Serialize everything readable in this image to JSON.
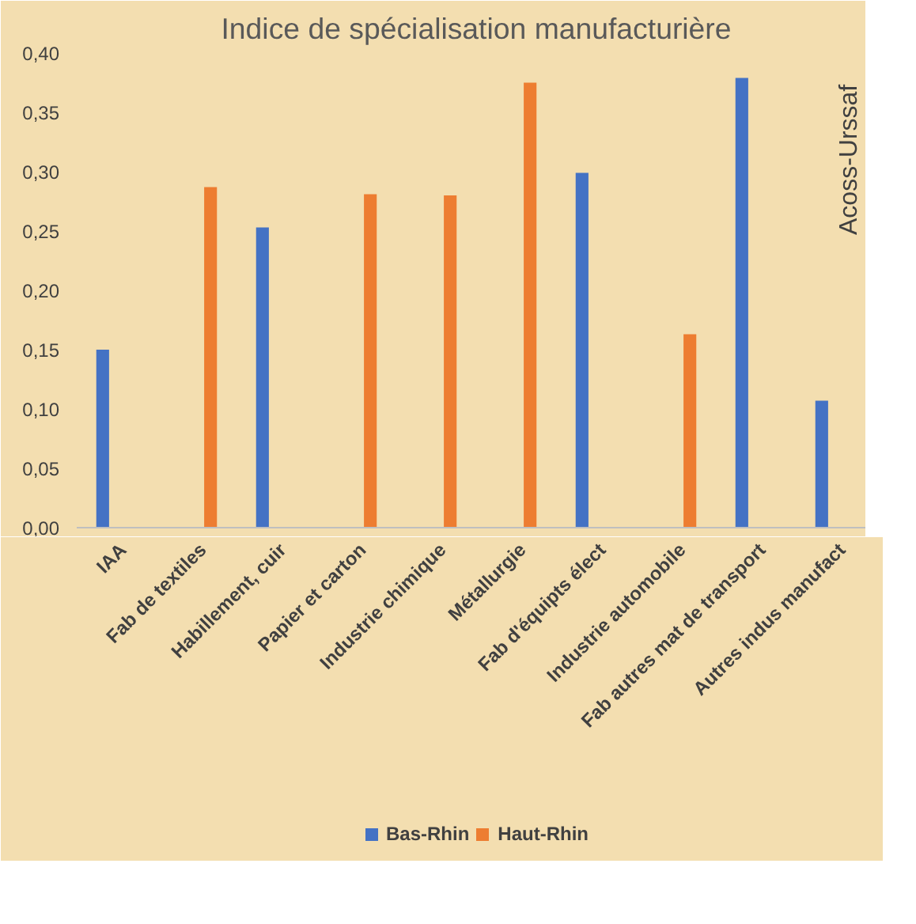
{
  "chart_data": {
    "type": "bar",
    "title": "Indice de spécialisation manufacturière",
    "categories": [
      "IAA",
      "Fab de textiles",
      "Habillement, cuir",
      "Papier et carton",
      "Industrie chimique",
      "Métallurgie",
      "Fab d'équipts élect",
      "Industrie automobile",
      "Fab autres mat de transport",
      "Autres indus manufact"
    ],
    "series": [
      {
        "name": "Bas-Rhin",
        "color": "#4472c4",
        "values": [
          0.15,
          null,
          0.253,
          null,
          null,
          null,
          0.299,
          null,
          0.379,
          0.107
        ]
      },
      {
        "name": "Haut-Rhin",
        "color": "#ed7d31",
        "values": [
          null,
          0.287,
          null,
          0.281,
          0.28,
          0.375,
          null,
          0.163,
          null,
          null
        ]
      }
    ],
    "ylim": [
      0,
      0.4
    ],
    "yticks": [
      {
        "value": 0,
        "label": "0,00"
      },
      {
        "value": 0.05,
        "label": "0,05"
      },
      {
        "value": 0.1,
        "label": "0,10"
      },
      {
        "value": 0.15,
        "label": "0,15"
      },
      {
        "value": 0.2,
        "label": "0,20"
      },
      {
        "value": 0.25,
        "label": "0,25"
      },
      {
        "value": 0.3,
        "label": "0,30"
      },
      {
        "value": 0.35,
        "label": "0,35"
      },
      {
        "value": 0.4,
        "label": "0,40"
      }
    ],
    "annotations": [
      "Acoss-Urssaf"
    ],
    "legend": "bottom",
    "grid": false
  }
}
